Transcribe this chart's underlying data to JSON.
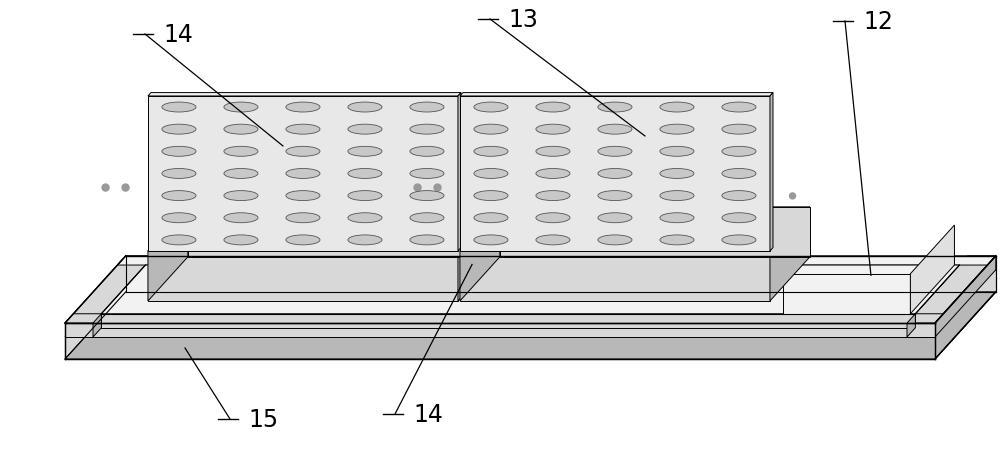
{
  "bg_color": "#ffffff",
  "lc": "#000000",
  "c_white": "#ffffff",
  "c_light": "#f2f2f2",
  "c_mid": "#d8d8d8",
  "c_dark": "#b8b8b8",
  "c_darker": "#999999",
  "c_panel": "#e8e8e8",
  "c_hole_fill": "#c8c8c8",
  "c_hole_edge": "#555555",
  "c_hatch": "#888888",
  "figsize": [
    10.0,
    4.52
  ],
  "dpi": 100,
  "label_fs": 17
}
